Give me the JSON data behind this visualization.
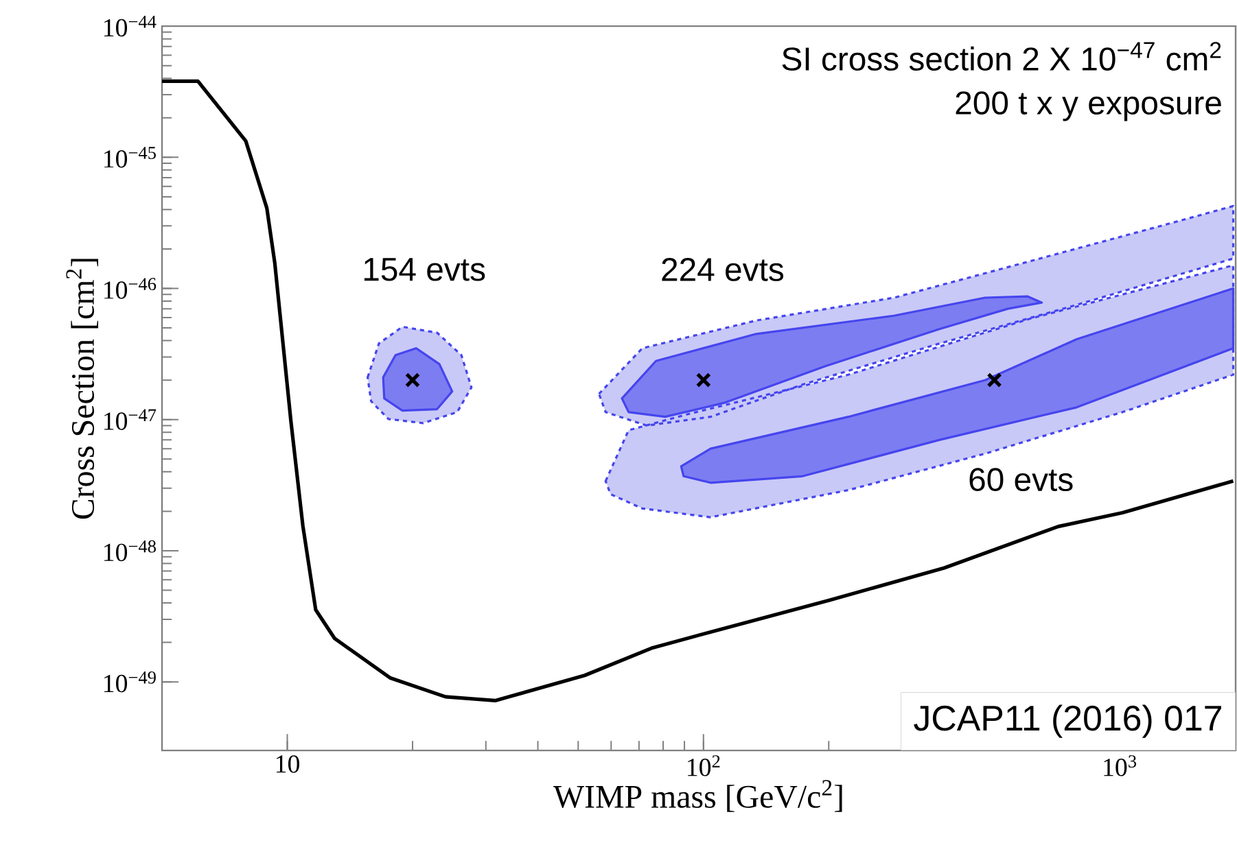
{
  "chart_data": {
    "type": "line",
    "log": "xy",
    "xlabel": "WIMP mass [GeV/c$^{2}$]",
    "ylabel": "Cross Section [cm$^{2}$]",
    "xlim": [
      5,
      1900
    ],
    "ylim": [
      3e-50,
      1e-44
    ],
    "xticks": [
      {
        "value": 10,
        "label": "10"
      },
      {
        "value": 100,
        "label": "10$^{2}$"
      },
      {
        "value": 1000,
        "label": "10$^{3}$"
      }
    ],
    "yticks": [
      {
        "value": 1e-49,
        "label": "10$^{−49}$"
      },
      {
        "value": 1e-48,
        "label": "10$^{−48}$"
      },
      {
        "value": 1e-47,
        "label": "10$^{−47}$"
      },
      {
        "value": 1e-46,
        "label": "10$^{−46}$"
      },
      {
        "value": 1e-45,
        "label": "10$^{−45}$"
      },
      {
        "value": 1e-44,
        "label": "10$^{−44}$"
      }
    ],
    "series": [
      {
        "type": "area",
        "color": "#c9c9f7",
        "line_style": "dashed",
        "x": [
          56.1,
          71.3,
          134,
          287,
          612,
          1306,
          1875,
          1875,
          789,
          369,
          173,
          104,
          73.1,
          58.2
        ],
        "values": [
          1.57e-47,
          3.5e-47,
          5.7e-47,
          8.5e-47,
          1.62e-46,
          3.1e-46,
          4.25e-46,
          1.69e-46,
          7.5e-47,
          3.8e-47,
          1.85e-47,
          1.05e-47,
          9e-48,
          1.14e-47
        ]
      },
      {
        "type": "area",
        "color": "#c9c9f7",
        "line_style": "dashed",
        "x": [
          58.2,
          66.1,
          91.8,
          223,
          612,
          1875,
          1875,
          1016,
          475,
          223,
          104,
          71.3,
          59.8
        ],
        "values": [
          3.4e-48,
          8.3e-48,
          1.1e-47,
          2.2e-47,
          5.9e-47,
          1.5e-46,
          2.2e-47,
          1.14e-47,
          5.5e-48,
          2.9e-48,
          1.8e-48,
          2.1e-48,
          2.7e-48
        ]
      },
      {
        "type": "area",
        "color": "#c9c9f7",
        "line_style": "dashed",
        "x": [
          15.6,
          16.6,
          18.9,
          22.9,
          26.2,
          27.7,
          25.6,
          21.2,
          17.5,
          15.9
        ],
        "values": [
          2.1e-47,
          3.8e-47,
          5.1e-47,
          4.6e-47,
          3.1e-47,
          1.76e-47,
          1.14e-47,
          9.4e-48,
          1.01e-47,
          1.38e-47
        ]
      },
      {
        "type": "area",
        "color": "#7d7df2",
        "line_style": "solid",
        "x": [
          63.7,
          76.9,
          134,
          287,
          475,
          600,
          650,
          539,
          369,
          196,
          112,
          80.9,
          66.1
        ],
        "values": [
          1.45e-47,
          2.8e-47,
          4.5e-47,
          6.2e-47,
          8.5e-47,
          8.7e-47,
          7.8e-47,
          7e-47,
          4.9e-47,
          2.55e-47,
          1.34e-47,
          1.05e-47,
          1.14e-47
        ]
      },
      {
        "type": "area",
        "color": "#7d7df2",
        "line_style": "solid",
        "x": [
          88.4,
          104,
          223,
          475,
          789,
          1875,
          1875,
          789,
          369,
          173,
          104,
          89.6
        ],
        "values": [
          4.4e-48,
          6e-48,
          1.05e-47,
          2e-47,
          4.1e-47,
          1e-46,
          3.5e-47,
          1.24e-47,
          7e-48,
          3.7e-48,
          3.3e-48,
          3.7e-48
        ]
      },
      {
        "type": "area",
        "color": "#7d7df2",
        "line_style": "solid",
        "x": [
          17.0,
          18.2,
          20.4,
          23.2,
          24.9,
          22.9,
          18.9,
          17.1
        ],
        "values": [
          2.1e-47,
          3.1e-47,
          3.5e-47,
          2.65e-47,
          1.64e-47,
          1.2e-47,
          1.17e-47,
          1.45e-47
        ]
      },
      {
        "color": "#000000",
        "line_style": "solid",
        "x": [
          5,
          6.1,
          7.95,
          8.93,
          9.33,
          10.2,
          10.9,
          11.7,
          13.0,
          17.7,
          24.0,
          31.6,
          51.8,
          75.5,
          104,
          201,
          379,
          712,
          1016,
          1875
        ],
        "values": [
          3.8e-45,
          3.8e-45,
          1.33e-45,
          4.1e-46,
          1.57e-46,
          9.8e-48,
          1.55e-48,
          3.55e-49,
          2.14e-49,
          1.07e-49,
          7.7e-50,
          7.2e-50,
          1.12e-49,
          1.82e-49,
          2.4e-49,
          4.2e-49,
          7.4e-49,
          1.53e-48,
          1.95e-48,
          3.4e-48
        ]
      },
      {
        "type": "scatter",
        "color": "#000000",
        "marker": "cross",
        "x": [
          20,
          100,
          500
        ],
        "values": [
          2e-47,
          2e-47,
          2e-47
        ]
      }
    ],
    "annotations": [
      "154 evts",
      "224 evts",
      "60 evts",
      "SI cross section 2 X 10$^{−47}$ cm$^{2}$",
      "200 t x y exposure",
      "JCAP11 (2016) 017"
    ]
  }
}
